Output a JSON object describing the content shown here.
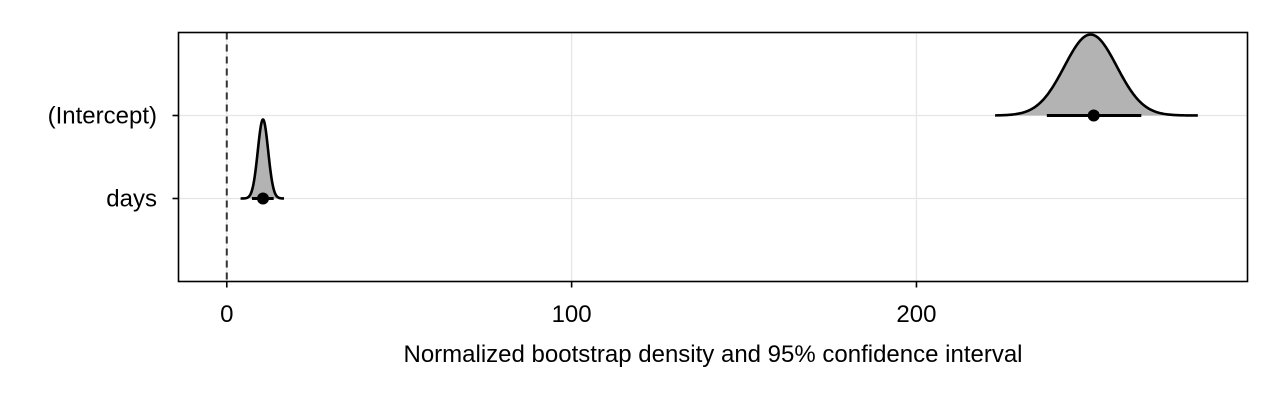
{
  "chart_data": {
    "type": "density-ridge",
    "title": "",
    "xlabel": "Normalized bootstrap density and 95% confidence interval",
    "ylabel": "",
    "xlim": [
      -14,
      296
    ],
    "x_ticks": [
      0,
      100,
      200
    ],
    "x_tick_labels": [
      "0",
      "100",
      "200"
    ],
    "reference_line_x": 0,
    "grid": true,
    "density_fill": "#b3b3b3",
    "line_color": "#000000",
    "rows": [
      {
        "label": "(Intercept)",
        "point": 251.4,
        "ci": [
          237.8,
          265.2
        ],
        "support": [
          222.8,
          281.6
        ],
        "mode": 250.5,
        "sd": 7.6
      },
      {
        "label": "days",
        "point": 10.5,
        "ci": [
          7.3,
          13.6
        ],
        "support": [
          4.0,
          16.6
        ],
        "mode": 10.5,
        "sd": 1.5
      }
    ]
  }
}
